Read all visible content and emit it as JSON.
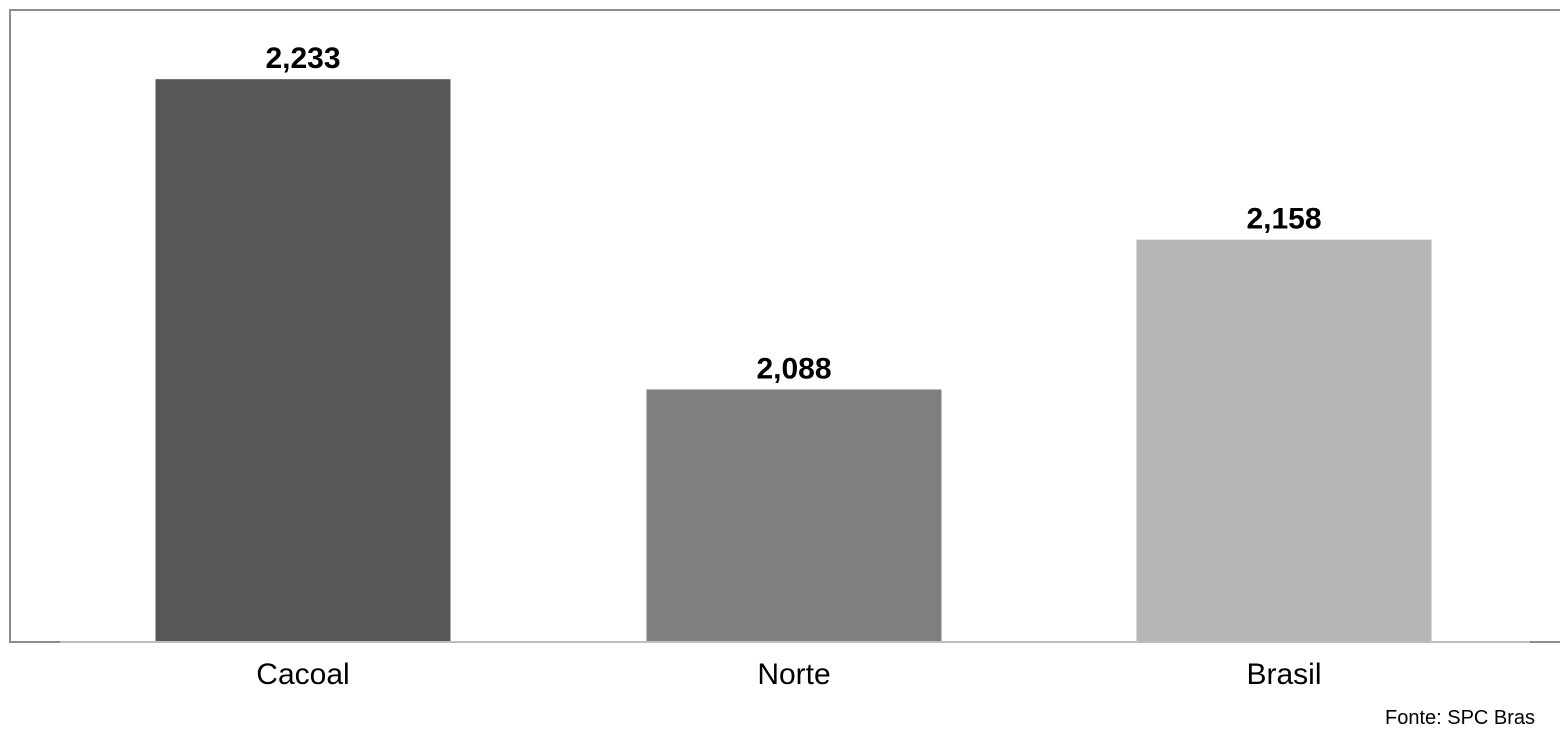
{
  "chart_data": {
    "type": "bar",
    "categories": [
      "Cacoal",
      "Norte",
      "Brasil"
    ],
    "values": [
      2.233,
      2.088,
      2.158
    ],
    "value_labels": [
      "2,233",
      "2,088",
      "2,158"
    ],
    "colors": [
      "#575757",
      "#7f7f7f",
      "#b7b7b7"
    ],
    "title": "",
    "xlabel": "",
    "ylabel": "",
    "ylim": [
      1.97,
      2.27
    ],
    "grid": false,
    "legend": "none"
  },
  "source": "Fonte: SPC Bras"
}
